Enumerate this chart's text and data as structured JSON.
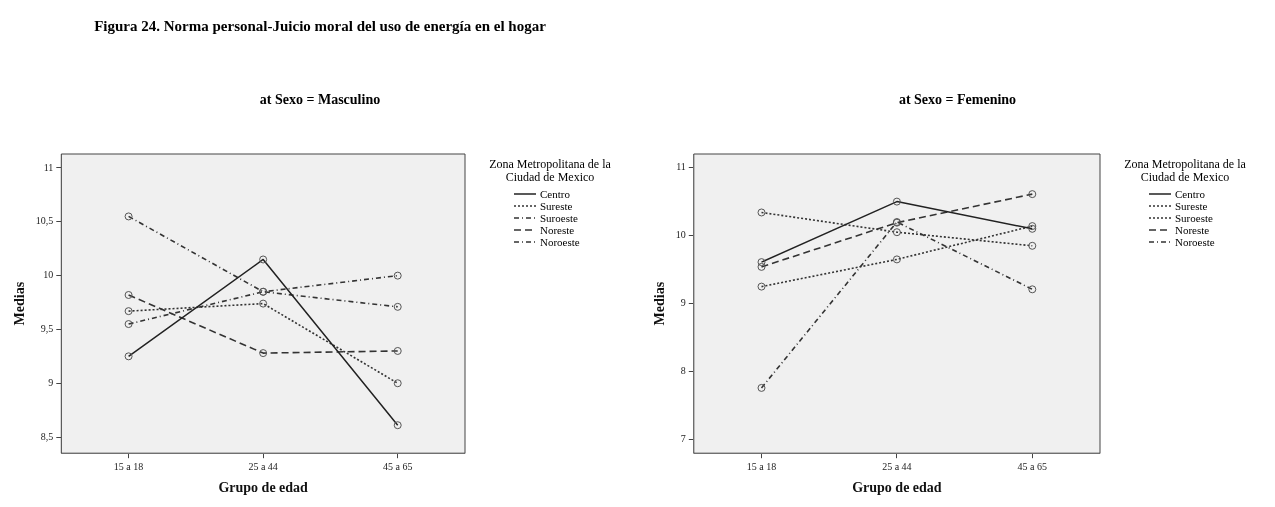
{
  "chart_data": [
    {
      "type": "line",
      "title": "Figura 24. Norma personal-Juicio moral del uso de energía en el hogar",
      "subtitle": "at Sexo = Masculino",
      "xlabel": "Grupo de edad",
      "ylabel": "Medias",
      "legend_title": "Zona Metropolitana de la Ciudad de Mexico",
      "legend": "right",
      "grid": false,
      "marker": "circle",
      "categories": [
        "15 a 18",
        "25 a 44",
        "45 a 65"
      ],
      "ylim": [
        8.35,
        11.13
      ],
      "yticks": [
        {
          "value": 8.5,
          "label": "8,5"
        },
        9,
        {
          "value": 9.5,
          "label": "9,5"
        },
        10,
        {
          "value": 10.5,
          "label": "10,5"
        },
        11
      ],
      "series": [
        {
          "name": "Centro",
          "color": "#222222",
          "line_style": "solid",
          "values": [
            9.25,
            10.15,
            8.61
          ]
        },
        {
          "name": "Sureste",
          "color": "#333333",
          "line_style": "dotted",
          "values": [
            9.67,
            9.74,
            9.0
          ]
        },
        {
          "name": "Suroeste",
          "color": "#333333",
          "line_style": "dashed",
          "values": [
            9.55,
            9.85,
            10.0
          ]
        },
        {
          "name": "Noreste",
          "color": "#333333",
          "line_style": "dashed",
          "values": [
            9.82,
            9.28,
            9.3
          ]
        },
        {
          "name": "Noroeste",
          "color": "#333333",
          "line_style": "dashed",
          "values": [
            10.55,
            9.85,
            9.71
          ]
        }
      ]
    },
    {
      "type": "line",
      "subtitle": "at Sexo = Femenino",
      "xlabel": "Grupo de edad",
      "ylabel": "Medias",
      "legend_title": "Zona Metropolitana de la Ciudad de Mexico",
      "legend": "right",
      "grid": false,
      "marker": "circle",
      "categories": [
        "15 a 18",
        "25 a 44",
        "45 a 65"
      ],
      "ylim": [
        6.8,
        11.2
      ],
      "yticks": [
        7,
        8,
        9,
        10,
        11
      ],
      "series": [
        {
          "name": "Centro",
          "color": "#222222",
          "line_style": "solid",
          "values": [
            9.61,
            10.5,
            10.1
          ]
        },
        {
          "name": "Sureste",
          "color": "#333333",
          "line_style": "dotted",
          "values": [
            9.25,
            9.65,
            10.14
          ]
        },
        {
          "name": "Suroeste",
          "color": "#333333",
          "line_style": "dotted",
          "values": [
            10.34,
            10.05,
            9.85
          ]
        },
        {
          "name": "Noreste",
          "color": "#333333",
          "line_style": "dashed",
          "values": [
            9.54,
            10.19,
            10.61
          ]
        },
        {
          "name": "Noroeste",
          "color": "#333333",
          "line_style": "dashed",
          "values": [
            7.76,
            10.2,
            9.21
          ]
        }
      ]
    }
  ]
}
